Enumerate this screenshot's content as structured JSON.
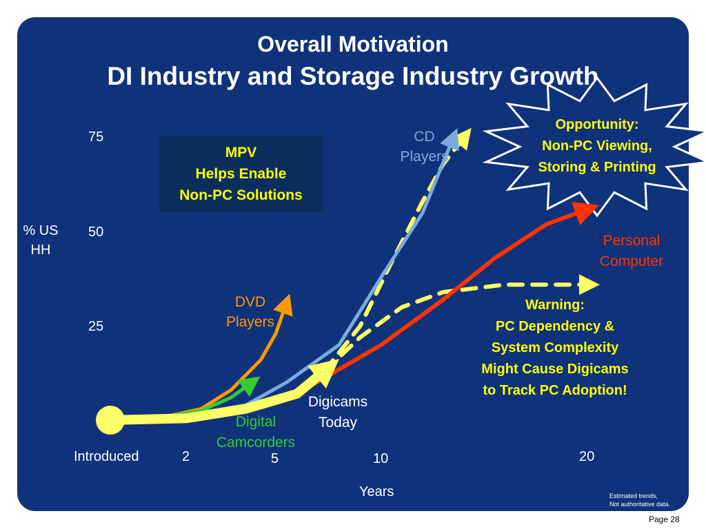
{
  "slide": {
    "title_line1": "Overall Motivation",
    "title_line2": "DI Industry and Storage Industry Growth",
    "mpv_box": [
      "MPV",
      "Helps Enable",
      "Non-PC Solutions"
    ],
    "opportunity": [
      "Opportunity:",
      "Non-PC Viewing,",
      "Storing & Printing"
    ],
    "warning": [
      "Warning:",
      "PC Dependency &",
      "System Complexity",
      "Might Cause Digicams",
      "to Track PC Adoption!"
    ],
    "footnote": [
      "Estimated trends,",
      "Not authoritative data."
    ],
    "page": "Page 28"
  },
  "colors": {
    "background": "#10327a",
    "cd_players": "#7aabdf",
    "personal_computer": "#ff3300",
    "dvd_players": "#ff9900",
    "digital_camcorders": "#33cc33",
    "digicams": "#ffff66",
    "callout_text": "#ffff00"
  },
  "chart_data": {
    "type": "line",
    "title": "DI Industry and Storage Industry Growth",
    "xlabel": "Years",
    "ylabel": "% US HH",
    "x_ticks": [
      "Introduced",
      "2",
      "5",
      "10",
      "20"
    ],
    "y_ticks": [
      "25",
      "50",
      "75"
    ],
    "note": "Estimated trends, Not authoritative data.",
    "series": [
      {
        "name": "CD Players",
        "color": "#7aabdf",
        "points": [
          [
            1.5,
            1
          ],
          [
            2.5,
            2
          ],
          [
            4,
            4
          ],
          [
            5.5,
            10
          ],
          [
            8,
            20
          ],
          [
            10,
            38
          ],
          [
            12,
            55
          ],
          [
            13.5,
            75
          ]
        ]
      },
      {
        "name": "Personal Computer",
        "color": "#ff3300",
        "points": [
          [
            1.5,
            1
          ],
          [
            3,
            2
          ],
          [
            6,
            7
          ],
          [
            10,
            20
          ],
          [
            13,
            32
          ],
          [
            15.5,
            43
          ],
          [
            18,
            52
          ],
          [
            20,
            56
          ]
        ]
      },
      {
        "name": "DVD Players",
        "color": "#ff9900",
        "points": [
          [
            1.5,
            1
          ],
          [
            2.5,
            3
          ],
          [
            3.5,
            8
          ],
          [
            4.5,
            16
          ],
          [
            5,
            23
          ],
          [
            5.5,
            31
          ]
        ]
      },
      {
        "name": "Digital Camcorders",
        "color": "#33cc33",
        "points": [
          [
            1.5,
            1
          ],
          [
            2.5,
            2.5
          ],
          [
            3.5,
            6
          ],
          [
            4.2,
            10
          ]
        ]
      },
      {
        "name": "Digicams Today",
        "color": "#ffff66",
        "points": [
          [
            0,
            0
          ],
          [
            2,
            0.5
          ],
          [
            4,
            3
          ],
          [
            6,
            7
          ],
          [
            7.3,
            13
          ]
        ]
      },
      {
        "name": "Opportunity (projected)",
        "color": "#ffff66",
        "dashed": true,
        "points": [
          [
            7.3,
            13
          ],
          [
            9,
            25
          ],
          [
            10.5,
            42
          ],
          [
            12,
            58
          ],
          [
            13,
            68
          ],
          [
            14,
            75
          ]
        ]
      },
      {
        "name": "Warning (projected)",
        "color": "#ffff66",
        "dashed": true,
        "points": [
          [
            7.3,
            13
          ],
          [
            9,
            22
          ],
          [
            11,
            30
          ],
          [
            13,
            34
          ],
          [
            16,
            36
          ],
          [
            20,
            36
          ]
        ]
      }
    ],
    "series_labels": {
      "cd": [
        "CD",
        "Players"
      ],
      "pc": [
        "Personal",
        "Computer"
      ],
      "dvd": [
        "DVD",
        "Players"
      ],
      "camcorders": [
        "Digital",
        "Camcorders"
      ],
      "digicams": [
        "Digicams",
        "Today"
      ]
    },
    "y_axis_label_lines": [
      "% US",
      "HH"
    ]
  }
}
